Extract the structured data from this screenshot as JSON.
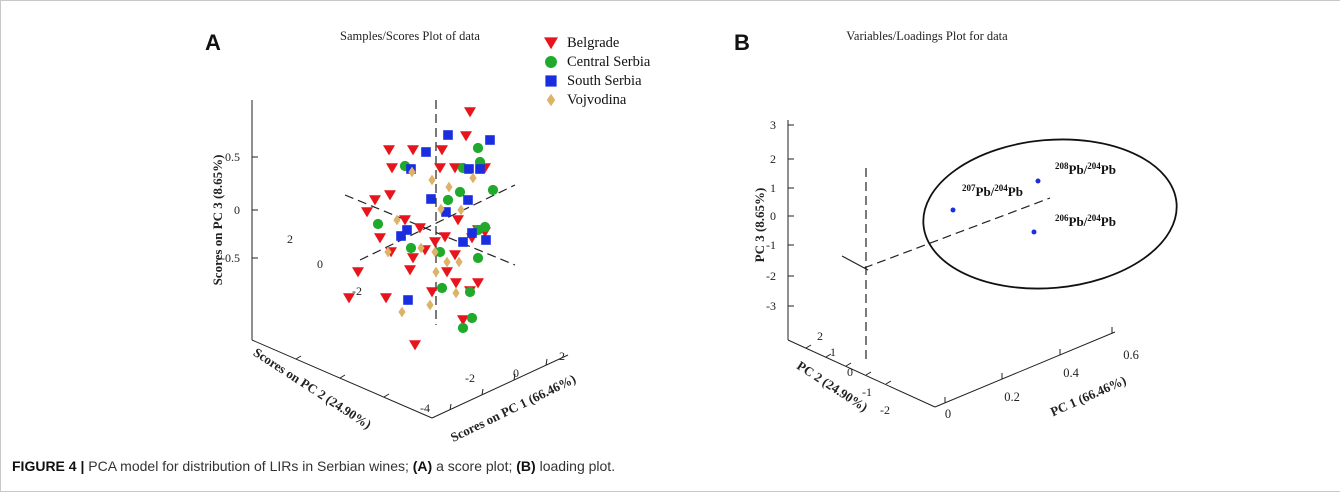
{
  "figure": {
    "caption_label": "FIGURE 4 |",
    "caption_text": " PCA model for distribution of LIRs in Serbian wines; ",
    "caption_a": "(A)",
    "caption_a_text": " a score plot; ",
    "caption_b": "(B)",
    "caption_b_text": " loading plot."
  },
  "chart_data": [
    {
      "type": "scatter",
      "panel_label": "A",
      "title": "Samples/Scores Plot of data",
      "xlabel": "Scores on PC 1 (66.46%)",
      "ylabel": "Scores on PC 2 (24.90%)",
      "zlabel": "Scores on PC 3 (8.65%)",
      "x_ticks": [
        "-4",
        "-2",
        "0",
        "2"
      ],
      "y_ticks": [
        "-2",
        "0",
        "2"
      ],
      "z_ticks": [
        "-0.5",
        "0",
        "0.5"
      ],
      "legend_position": "top-right",
      "series": [
        {
          "name": "Belgrade",
          "color": "#e8141c",
          "marker": "triangle-down"
        },
        {
          "name": "Central Serbia",
          "color": "#1faa2c",
          "marker": "circle"
        },
        {
          "name": "South Serbia",
          "color": "#1a2ee0",
          "marker": "square"
        },
        {
          "name": "Vojvodina",
          "color": "#ddb36a",
          "marker": "diamond"
        }
      ]
    },
    {
      "type": "scatter",
      "panel_label": "B",
      "title": "Variables/Loadings Plot for data",
      "xlabel": "PC 1 (66.46%)",
      "ylabel": "PC 2 (24.90%)",
      "zlabel": "PC 3 (8.65%)",
      "x_ticks": [
        "0",
        "0.2",
        "0.4",
        "0.6"
      ],
      "y_ticks": [
        "-2",
        "-1",
        "0",
        "1",
        "2"
      ],
      "z_ticks": [
        "-3",
        "-2",
        "-1",
        "0",
        "1",
        "2",
        "3"
      ],
      "points": [
        {
          "label_pre": "207",
          "label_mid": "Pb/",
          "label_sup2": "204",
          "label_post": "Pb"
        },
        {
          "label_pre": "208",
          "label_mid": "Pb/",
          "label_sup2": "204",
          "label_post": "Pb"
        },
        {
          "label_pre": "206",
          "label_mid": "Pb/",
          "label_sup2": "204",
          "label_post": "Pb"
        }
      ],
      "point_color": "#1a2ee0"
    }
  ]
}
